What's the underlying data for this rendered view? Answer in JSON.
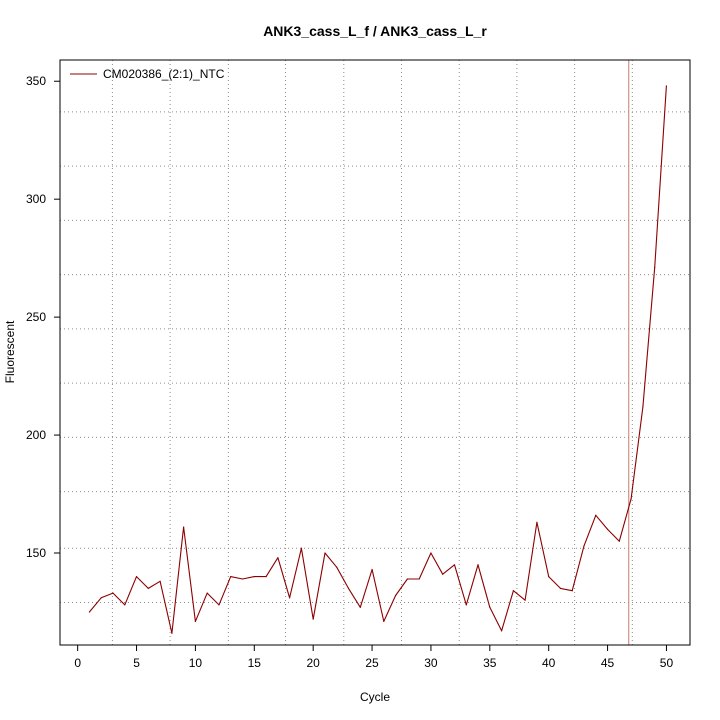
{
  "chart_data": {
    "type": "line",
    "title": "ANK3_cass_L_f / ANK3_cass_L_r",
    "xlabel": "Cycle",
    "ylabel": "Fluorescent",
    "xlim": [
      -1.5,
      52
    ],
    "ylim": [
      111,
      359
    ],
    "x_ticks": [
      0,
      5,
      10,
      15,
      20,
      25,
      30,
      35,
      40,
      45,
      50
    ],
    "y_ticks": [
      150,
      200,
      250,
      300,
      350
    ],
    "grid": true,
    "grid_style": "dotted",
    "grid_x": [
      2.95,
      7.85,
      12.8,
      17.65,
      22.6,
      27.5,
      32.4,
      37.3,
      42.2,
      47.1
    ],
    "grid_y": [
      129,
      152,
      176,
      199,
      222,
      245,
      268,
      291,
      314,
      337
    ],
    "legend_position": "top-left",
    "threshold": {
      "x": 46.8,
      "color": "#c87c6e"
    },
    "series": [
      {
        "name": "CM020386_(2:1)_NTC",
        "color": "#8b0000",
        "x": [
          1,
          2,
          3,
          4,
          5,
          6,
          7,
          8,
          9,
          10,
          11,
          12,
          13,
          14,
          15,
          16,
          17,
          18,
          19,
          20,
          21,
          22,
          23,
          24,
          25,
          26,
          27,
          28,
          29,
          30,
          31,
          32,
          33,
          34,
          35,
          36,
          37,
          38,
          39,
          40,
          41,
          42,
          43,
          44,
          45,
          46,
          47,
          48,
          49,
          50
        ],
        "values": [
          125,
          131,
          133,
          128,
          140,
          135,
          138,
          116,
          161,
          121,
          133,
          128,
          140,
          139,
          140,
          140,
          148,
          131,
          152,
          122,
          150,
          144,
          135,
          127,
          143,
          121,
          132,
          139,
          139,
          150,
          141,
          145,
          128,
          145,
          127,
          117,
          134,
          130,
          163,
          140,
          135,
          134,
          153,
          166,
          160,
          155,
          173,
          212,
          271,
          348
        ]
      }
    ]
  }
}
